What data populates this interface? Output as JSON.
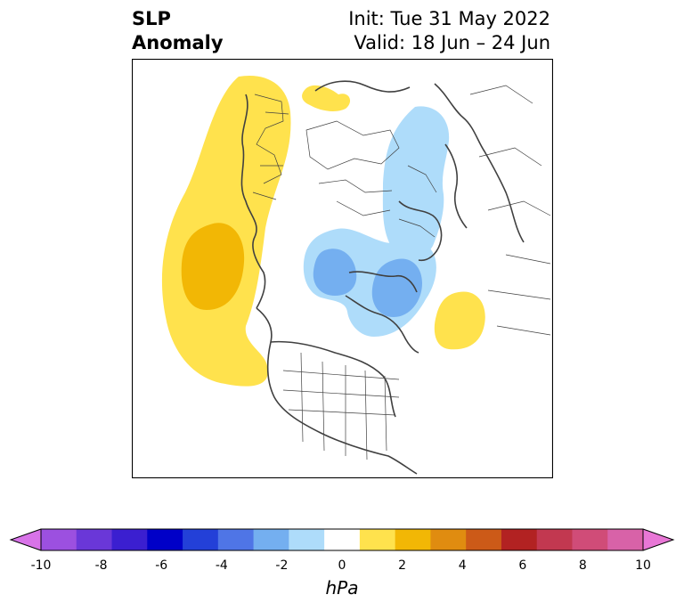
{
  "title": {
    "left_line1": "SLP",
    "left_line2": "Anomaly",
    "init": "Init: Tue 31 May 2022",
    "valid": "Valid: 18 Jun – 24 Jun"
  },
  "colorbar": {
    "unit": "hPa",
    "tick_labels": [
      "-10",
      "-8",
      "-6",
      "-4",
      "-2",
      "0",
      "2",
      "4",
      "6",
      "8",
      "10"
    ],
    "colors": [
      "#d873e8",
      "#9c50e0",
      "#6a37d8",
      "#3b1fd0",
      "#0000c8",
      "#2340d8",
      "#4f75e6",
      "#74aff0",
      "#aedcfa",
      "#ffffff",
      "#ffe24d",
      "#f2b705",
      "#e08c10",
      "#cc5a18",
      "#b22222",
      "#c23850",
      "#d04c78",
      "#d862a8",
      "#e877d6"
    ]
  }
}
